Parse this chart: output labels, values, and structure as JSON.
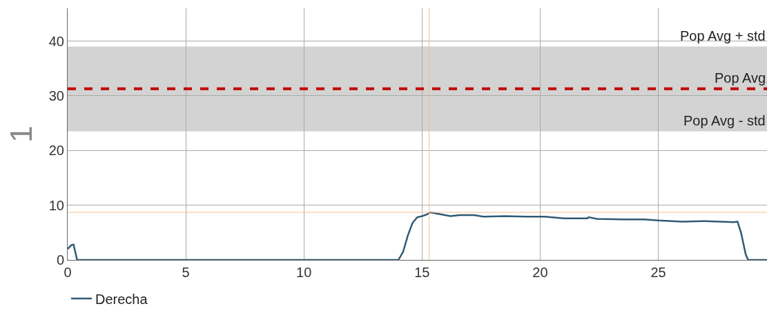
{
  "chart_data": {
    "type": "line",
    "ylabel": "1",
    "series": [
      {
        "name": "Derecha",
        "color": "#2f5a73",
        "x": [
          0,
          0.15,
          0.25,
          0.4,
          14.0,
          14.2,
          14.4,
          14.6,
          14.8,
          15.0,
          15.2,
          15.35,
          15.7,
          16.2,
          16.6,
          17.2,
          17.6,
          18.5,
          19.5,
          20.2,
          21,
          22,
          22.05,
          22.4,
          23.5,
          24.4,
          25,
          26,
          27,
          28.2,
          28.35,
          28.5,
          28.7,
          28.8,
          29.6
        ],
        "values": [
          2.0,
          2.7,
          2.8,
          0,
          0,
          1.5,
          4.5,
          6.8,
          7.8,
          8.0,
          8.3,
          8.7,
          8.4,
          8.0,
          8.2,
          8.2,
          7.9,
          8.0,
          7.9,
          7.9,
          7.6,
          7.6,
          7.8,
          7.5,
          7.4,
          7.4,
          7.2,
          7.0,
          7.1,
          6.9,
          7.0,
          5,
          1,
          0,
          0
        ]
      }
    ],
    "xlim": [
      0,
      29.6
    ],
    "xticks": [
      0,
      5,
      10,
      15,
      20,
      25
    ],
    "ylim": [
      0,
      46
    ],
    "yticks": [
      0,
      10,
      20,
      30,
      40
    ],
    "bands": [
      {
        "axis": "y",
        "from": 23.5,
        "to": 39,
        "color": "#d3d3d3"
      }
    ],
    "ref_lines": [
      {
        "axis": "y",
        "value": 31.3,
        "label": "Pop Avg",
        "color": "#c00000",
        "line_style": "dashed"
      },
      {
        "axis": "x",
        "value": 15.3,
        "color": "#f5c08a",
        "line_style": "solid"
      },
      {
        "axis": "y",
        "value": 8.7,
        "color": "#f5c08a",
        "line_style": "solid"
      }
    ],
    "annotations": [
      {
        "text": "Pop Avg + std",
        "x": 29.6,
        "y": 39
      },
      {
        "text": "Pop Avg - std",
        "x": 29.6,
        "y": 23.5
      }
    ],
    "grid": true,
    "legend": "bottom left",
    "marker": "none",
    "line_style": "solid"
  }
}
